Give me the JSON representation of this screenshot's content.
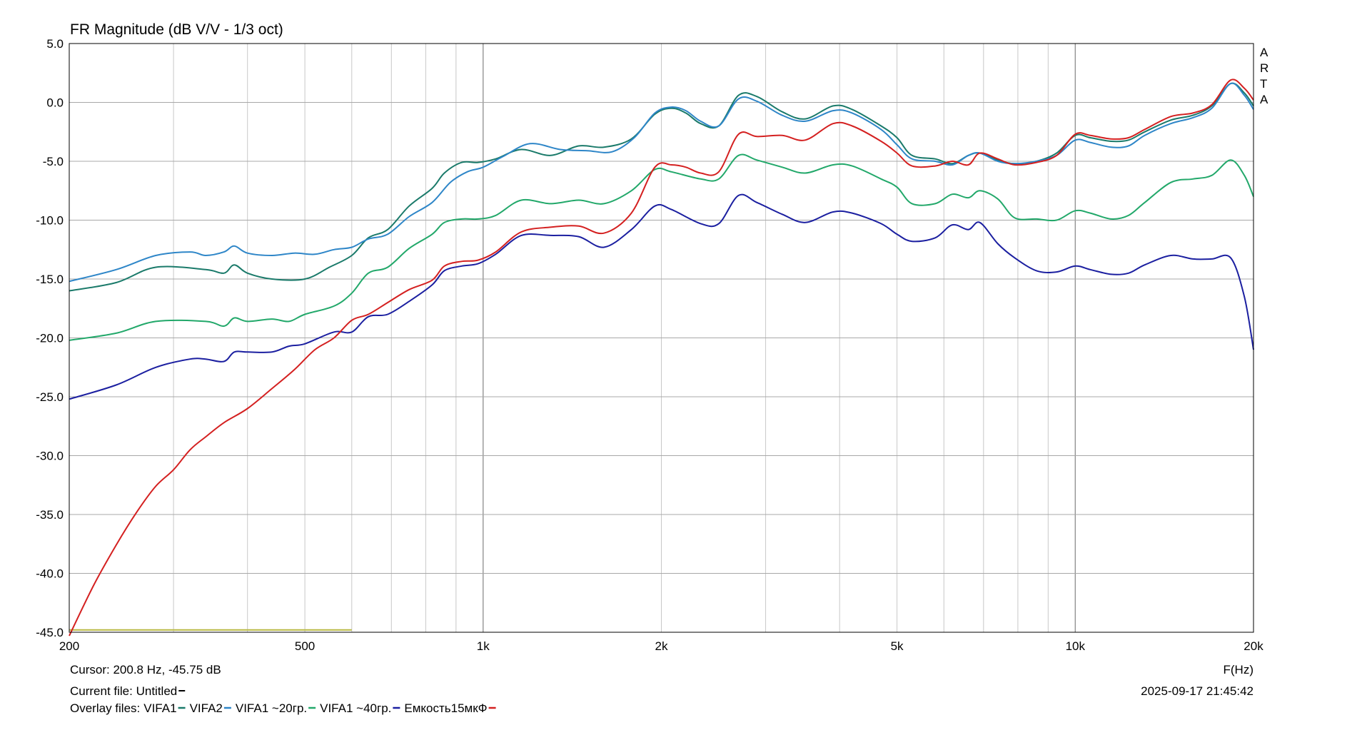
{
  "chart_data": {
    "type": "line",
    "title": "FR Magnitude (dB V/V - 1/3 oct)",
    "xlabel": "F(Hz)",
    "ylabel": "",
    "x_scale": "log",
    "xlim": [
      200,
      20000
    ],
    "ylim": [
      -45,
      5
    ],
    "grid": true,
    "brand": "ARTA",
    "x_ticks": [
      {
        "value": 200,
        "label": "200"
      },
      {
        "value": 500,
        "label": "500"
      },
      {
        "value": 1000,
        "label": "1k"
      },
      {
        "value": 2000,
        "label": "2k"
      },
      {
        "value": 5000,
        "label": "5k"
      },
      {
        "value": 10000,
        "label": "10k"
      },
      {
        "value": 20000,
        "label": "20k"
      }
    ],
    "y_ticks": [
      {
        "value": 5,
        "label": "5.0"
      },
      {
        "value": 0,
        "label": "0.0"
      },
      {
        "value": -5,
        "label": "-5.0"
      },
      {
        "value": -10,
        "label": "-10.0"
      },
      {
        "value": -15,
        "label": "-15.0"
      },
      {
        "value": -20,
        "label": "-20.0"
      },
      {
        "value": -25,
        "label": "-25.0"
      },
      {
        "value": -30,
        "label": "-30.0"
      },
      {
        "value": -35,
        "label": "-35.0"
      },
      {
        "value": -40,
        "label": "-40.0"
      },
      {
        "value": -45,
        "label": "-45.0"
      }
    ],
    "series": [
      {
        "name": "VIFA1",
        "color": "#1a7a6a",
        "points": [
          [
            200,
            -16
          ],
          [
            240,
            -15.3
          ],
          [
            280,
            -14
          ],
          [
            340,
            -14.2
          ],
          [
            365,
            -14.5
          ],
          [
            380,
            -13.8
          ],
          [
            400,
            -14.5
          ],
          [
            440,
            -15
          ],
          [
            500,
            -15
          ],
          [
            550,
            -14
          ],
          [
            600,
            -13
          ],
          [
            640,
            -11.5
          ],
          [
            690,
            -10.8
          ],
          [
            750,
            -8.8
          ],
          [
            820,
            -7.3
          ],
          [
            860,
            -6
          ],
          [
            920,
            -5.1
          ],
          [
            980,
            -5.1
          ],
          [
            1050,
            -4.8
          ],
          [
            1160,
            -4
          ],
          [
            1300,
            -4.5
          ],
          [
            1450,
            -3.7
          ],
          [
            1600,
            -3.8
          ],
          [
            1780,
            -3.1
          ],
          [
            1950,
            -1
          ],
          [
            2080,
            -0.5
          ],
          [
            2200,
            -0.9
          ],
          [
            2330,
            -1.8
          ],
          [
            2500,
            -2
          ],
          [
            2700,
            0.6
          ],
          [
            2900,
            0.5
          ],
          [
            3200,
            -0.8
          ],
          [
            3500,
            -1.4
          ],
          [
            3900,
            -0.3
          ],
          [
            4200,
            -0.6
          ],
          [
            4700,
            -2
          ],
          [
            5000,
            -3
          ],
          [
            5300,
            -4.5
          ],
          [
            5800,
            -4.8
          ],
          [
            6200,
            -5.2
          ],
          [
            6600,
            -4.5
          ],
          [
            6900,
            -4.3
          ],
          [
            7400,
            -4.9
          ],
          [
            7900,
            -5.2
          ],
          [
            8600,
            -5
          ],
          [
            9300,
            -4.3
          ],
          [
            10000,
            -2.8
          ],
          [
            10600,
            -3
          ],
          [
            11500,
            -3.3
          ],
          [
            12300,
            -3.2
          ],
          [
            13100,
            -2.5
          ],
          [
            14500,
            -1.5
          ],
          [
            15800,
            -1.1
          ],
          [
            17000,
            -0.3
          ],
          [
            18300,
            1.6
          ],
          [
            19300,
            0.8
          ],
          [
            20000,
            -0.3
          ]
        ]
      },
      {
        "name": "VIFA2",
        "color": "#2e86c8",
        "points": [
          [
            200,
            -15.2
          ],
          [
            240,
            -14.2
          ],
          [
            280,
            -13
          ],
          [
            320,
            -12.7
          ],
          [
            340,
            -13
          ],
          [
            365,
            -12.7
          ],
          [
            380,
            -12.2
          ],
          [
            400,
            -12.8
          ],
          [
            440,
            -13
          ],
          [
            480,
            -12.8
          ],
          [
            520,
            -12.9
          ],
          [
            560,
            -12.5
          ],
          [
            600,
            -12.3
          ],
          [
            640,
            -11.6
          ],
          [
            690,
            -11.2
          ],
          [
            750,
            -9.7
          ],
          [
            820,
            -8.5
          ],
          [
            880,
            -6.8
          ],
          [
            940,
            -5.9
          ],
          [
            1000,
            -5.5
          ],
          [
            1080,
            -4.6
          ],
          [
            1200,
            -3.5
          ],
          [
            1350,
            -4
          ],
          [
            1500,
            -4.1
          ],
          [
            1650,
            -4.2
          ],
          [
            1800,
            -3
          ],
          [
            1950,
            -0.9
          ],
          [
            2080,
            -0.4
          ],
          [
            2200,
            -0.7
          ],
          [
            2330,
            -1.6
          ],
          [
            2500,
            -2
          ],
          [
            2700,
            0.3
          ],
          [
            2900,
            0.1
          ],
          [
            3200,
            -1.1
          ],
          [
            3500,
            -1.6
          ],
          [
            3900,
            -0.7
          ],
          [
            4200,
            -0.9
          ],
          [
            4700,
            -2.3
          ],
          [
            5000,
            -3.6
          ],
          [
            5300,
            -4.8
          ],
          [
            5800,
            -5
          ],
          [
            6200,
            -5.3
          ],
          [
            6600,
            -4.5
          ],
          [
            6900,
            -4.3
          ],
          [
            7400,
            -5
          ],
          [
            7900,
            -5.2
          ],
          [
            8600,
            -5
          ],
          [
            9300,
            -4.5
          ],
          [
            10000,
            -3.2
          ],
          [
            10600,
            -3.4
          ],
          [
            11500,
            -3.8
          ],
          [
            12300,
            -3.7
          ],
          [
            13100,
            -2.8
          ],
          [
            14500,
            -1.8
          ],
          [
            15800,
            -1.3
          ],
          [
            17000,
            -0.5
          ],
          [
            18300,
            1.6
          ],
          [
            19300,
            0.6
          ],
          [
            20000,
            -0.6
          ]
        ]
      },
      {
        "name": "VIFA1 ~20гр.",
        "color": "#22a86a",
        "points": [
          [
            200,
            -20.2
          ],
          [
            240,
            -19.6
          ],
          [
            280,
            -18.6
          ],
          [
            340,
            -18.6
          ],
          [
            365,
            -19
          ],
          [
            380,
            -18.3
          ],
          [
            400,
            -18.6
          ],
          [
            440,
            -18.4
          ],
          [
            470,
            -18.6
          ],
          [
            500,
            -18
          ],
          [
            560,
            -17.3
          ],
          [
            600,
            -16.2
          ],
          [
            640,
            -14.5
          ],
          [
            690,
            -14
          ],
          [
            750,
            -12.4
          ],
          [
            820,
            -11.2
          ],
          [
            860,
            -10.2
          ],
          [
            920,
            -9.9
          ],
          [
            980,
            -9.9
          ],
          [
            1050,
            -9.6
          ],
          [
            1160,
            -8.3
          ],
          [
            1300,
            -8.6
          ],
          [
            1450,
            -8.3
          ],
          [
            1600,
            -8.6
          ],
          [
            1780,
            -7.5
          ],
          [
            1950,
            -5.7
          ],
          [
            2080,
            -5.9
          ],
          [
            2330,
            -6.5
          ],
          [
            2500,
            -6.5
          ],
          [
            2700,
            -4.5
          ],
          [
            2900,
            -4.9
          ],
          [
            3200,
            -5.5
          ],
          [
            3500,
            -6
          ],
          [
            3900,
            -5.3
          ],
          [
            4200,
            -5.4
          ],
          [
            4700,
            -6.5
          ],
          [
            5000,
            -7.2
          ],
          [
            5300,
            -8.6
          ],
          [
            5800,
            -8.6
          ],
          [
            6200,
            -7.8
          ],
          [
            6600,
            -8.1
          ],
          [
            6900,
            -7.5
          ],
          [
            7400,
            -8.2
          ],
          [
            7900,
            -9.8
          ],
          [
            8600,
            -9.9
          ],
          [
            9300,
            -10
          ],
          [
            10000,
            -9.2
          ],
          [
            10600,
            -9.4
          ],
          [
            11500,
            -9.9
          ],
          [
            12300,
            -9.6
          ],
          [
            13100,
            -8.5
          ],
          [
            14500,
            -6.8
          ],
          [
            15800,
            -6.5
          ],
          [
            17000,
            -6.2
          ],
          [
            18300,
            -4.9
          ],
          [
            19300,
            -6.2
          ],
          [
            20000,
            -8
          ]
        ]
      },
      {
        "name": "VIFA1 ~40гр.",
        "color": "#1b1fa0",
        "points": [
          [
            200,
            -25.2
          ],
          [
            240,
            -24
          ],
          [
            280,
            -22.5
          ],
          [
            320,
            -21.8
          ],
          [
            340,
            -21.8
          ],
          [
            365,
            -22
          ],
          [
            380,
            -21.2
          ],
          [
            400,
            -21.2
          ],
          [
            440,
            -21.2
          ],
          [
            470,
            -20.7
          ],
          [
            500,
            -20.5
          ],
          [
            560,
            -19.5
          ],
          [
            600,
            -19.5
          ],
          [
            640,
            -18.2
          ],
          [
            690,
            -18
          ],
          [
            750,
            -16.9
          ],
          [
            820,
            -15.5
          ],
          [
            860,
            -14.3
          ],
          [
            920,
            -13.9
          ],
          [
            980,
            -13.7
          ],
          [
            1050,
            -12.9
          ],
          [
            1160,
            -11.3
          ],
          [
            1300,
            -11.3
          ],
          [
            1450,
            -11.4
          ],
          [
            1600,
            -12.3
          ],
          [
            1780,
            -10.8
          ],
          [
            1950,
            -8.8
          ],
          [
            2080,
            -9.1
          ],
          [
            2330,
            -10.3
          ],
          [
            2500,
            -10.3
          ],
          [
            2700,
            -7.9
          ],
          [
            2900,
            -8.5
          ],
          [
            3200,
            -9.5
          ],
          [
            3500,
            -10.2
          ],
          [
            3900,
            -9.3
          ],
          [
            4200,
            -9.4
          ],
          [
            4700,
            -10.3
          ],
          [
            5000,
            -11.2
          ],
          [
            5300,
            -11.8
          ],
          [
            5800,
            -11.5
          ],
          [
            6200,
            -10.4
          ],
          [
            6600,
            -10.8
          ],
          [
            6900,
            -10.2
          ],
          [
            7400,
            -12
          ],
          [
            7900,
            -13.2
          ],
          [
            8600,
            -14.3
          ],
          [
            9300,
            -14.4
          ],
          [
            10000,
            -13.9
          ],
          [
            10600,
            -14.2
          ],
          [
            11500,
            -14.6
          ],
          [
            12300,
            -14.5
          ],
          [
            13100,
            -13.8
          ],
          [
            14500,
            -13
          ],
          [
            15800,
            -13.3
          ],
          [
            17000,
            -13.3
          ],
          [
            18300,
            -13.2
          ],
          [
            19300,
            -16.5
          ],
          [
            20000,
            -21
          ]
        ]
      },
      {
        "name": "Емкость15мкФ",
        "color": "#d42020",
        "points": [
          [
            200,
            -45.3
          ],
          [
            220,
            -41
          ],
          [
            240,
            -37.6
          ],
          [
            260,
            -34.8
          ],
          [
            280,
            -32.6
          ],
          [
            300,
            -31.2
          ],
          [
            320,
            -29.5
          ],
          [
            340,
            -28.4
          ],
          [
            365,
            -27.2
          ],
          [
            400,
            -26
          ],
          [
            440,
            -24.3
          ],
          [
            480,
            -22.7
          ],
          [
            520,
            -21
          ],
          [
            560,
            -20
          ],
          [
            600,
            -18.5
          ],
          [
            640,
            -18
          ],
          [
            690,
            -17
          ],
          [
            750,
            -15.9
          ],
          [
            820,
            -15.1
          ],
          [
            860,
            -13.9
          ],
          [
            920,
            -13.5
          ],
          [
            980,
            -13.4
          ],
          [
            1050,
            -12.7
          ],
          [
            1160,
            -11
          ],
          [
            1300,
            -10.6
          ],
          [
            1450,
            -10.5
          ],
          [
            1600,
            -11.1
          ],
          [
            1780,
            -9.4
          ],
          [
            1950,
            -5.5
          ],
          [
            2080,
            -5.3
          ],
          [
            2200,
            -5.5
          ],
          [
            2330,
            -6
          ],
          [
            2500,
            -5.9
          ],
          [
            2700,
            -2.7
          ],
          [
            2900,
            -2.9
          ],
          [
            3200,
            -2.8
          ],
          [
            3500,
            -3.2
          ],
          [
            3900,
            -1.8
          ],
          [
            4200,
            -2
          ],
          [
            4700,
            -3.3
          ],
          [
            5000,
            -4.3
          ],
          [
            5300,
            -5.4
          ],
          [
            5800,
            -5.4
          ],
          [
            6200,
            -5
          ],
          [
            6600,
            -5.3
          ],
          [
            6900,
            -4.3
          ],
          [
            7400,
            -4.8
          ],
          [
            7900,
            -5.3
          ],
          [
            8600,
            -5.1
          ],
          [
            9300,
            -4.5
          ],
          [
            10000,
            -2.7
          ],
          [
            10600,
            -2.8
          ],
          [
            11500,
            -3.1
          ],
          [
            12300,
            -3
          ],
          [
            13100,
            -2.3
          ],
          [
            14500,
            -1.2
          ],
          [
            15800,
            -0.9
          ],
          [
            17000,
            -0.2
          ],
          [
            18300,
            1.9
          ],
          [
            19300,
            1.2
          ],
          [
            20000,
            0.2
          ]
        ]
      }
    ],
    "extra_segment": {
      "x_start": 200,
      "x_end": 600,
      "y": -44.8,
      "color": "#b8b840"
    }
  },
  "info": {
    "cursor": "Cursor: 200.8 Hz, -45.75 dB",
    "current_file": "Current file: Untitled",
    "overlay_label": "Overlay files:",
    "timestamp": "2025-09-17  21:45:42"
  }
}
